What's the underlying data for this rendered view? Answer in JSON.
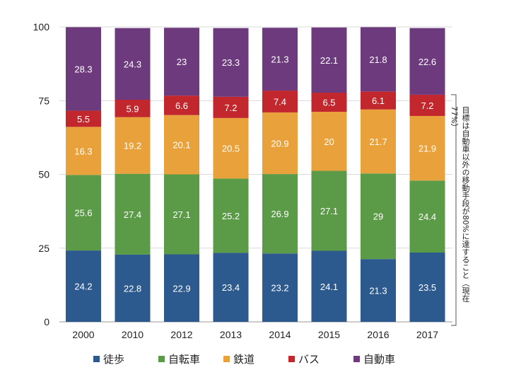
{
  "chart_data": {
    "type": "bar",
    "stacked": true,
    "categories": [
      "2000",
      "2010",
      "2012",
      "2013",
      "2014",
      "2015",
      "2016",
      "2017"
    ],
    "series": [
      {
        "name": "徒歩",
        "color": "#2d5a8e",
        "values": [
          24.2,
          22.8,
          22.9,
          23.4,
          23.2,
          24.1,
          21.3,
          23.5
        ]
      },
      {
        "name": "自転車",
        "color": "#5b9a47",
        "values": [
          25.6,
          27.4,
          27.1,
          25.2,
          26.9,
          27.1,
          29,
          24.4
        ]
      },
      {
        "name": "鉄道",
        "color": "#e9a23b",
        "values": [
          16.3,
          19.2,
          20.1,
          20.5,
          20.9,
          20,
          21.7,
          21.9
        ]
      },
      {
        "name": "バス",
        "color": "#c1272d",
        "values": [
          5.5,
          5.9,
          6.6,
          7.2,
          7.4,
          6.5,
          6.1,
          7.2
        ]
      },
      {
        "name": "自動車",
        "color": "#6d3a7d",
        "values": [
          28.3,
          24.3,
          23,
          23.3,
          21.3,
          22.1,
          21.8,
          22.6
        ]
      }
    ],
    "ylim": [
      0,
      100
    ],
    "yticks": [
      "0",
      "25",
      "50",
      "75",
      "100"
    ],
    "grid": true,
    "legend_position": "bottom",
    "annotation": "目標は自動車以外の移動手段が80%に達すること（現在77%）"
  }
}
